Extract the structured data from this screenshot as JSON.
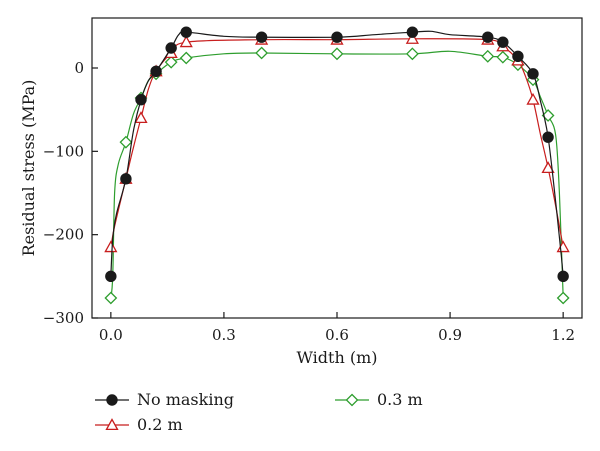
{
  "chart_data": {
    "type": "line",
    "title": "",
    "xlabel": "Width (m)",
    "ylabel": "Residual stress (MPa)",
    "xlim": [
      -0.05,
      1.25
    ],
    "ylim": [
      -300,
      60
    ],
    "x_ticks": [
      0.0,
      0.3,
      0.6,
      0.9,
      1.2
    ],
    "x_tick_labels": [
      "0.0",
      "0.3",
      "0.6",
      "0.9",
      "1.2"
    ],
    "y_ticks": [
      -300,
      -200,
      -100,
      0
    ],
    "y_tick_labels": [
      "−300",
      "−200",
      "−100",
      "0"
    ],
    "grid": false,
    "legend_position": "bottom",
    "series": [
      {
        "name": "No masking",
        "color": "#1a1a1a",
        "marker": "filled-circle",
        "points": [
          [
            0.0,
            -250
          ],
          [
            0.04,
            -133
          ],
          [
            0.08,
            -38
          ],
          [
            0.12,
            -4
          ],
          [
            0.16,
            24
          ],
          [
            0.2,
            43
          ],
          [
            0.4,
            37
          ],
          [
            0.6,
            37
          ],
          [
            0.8,
            43
          ],
          [
            1.0,
            37
          ],
          [
            1.04,
            31
          ],
          [
            1.08,
            14
          ],
          [
            1.12,
            -7
          ],
          [
            1.16,
            -83
          ],
          [
            1.2,
            -250
          ]
        ],
        "curve": [
          [
            0.0,
            -250
          ],
          [
            0.005,
            -205
          ],
          [
            0.015,
            -175
          ],
          [
            0.04,
            -133
          ],
          [
            0.06,
            -75
          ],
          [
            0.08,
            -38
          ],
          [
            0.1,
            -15
          ],
          [
            0.12,
            -4
          ],
          [
            0.16,
            24
          ],
          [
            0.18,
            40
          ],
          [
            0.2,
            43
          ],
          [
            0.3,
            38
          ],
          [
            0.4,
            37
          ],
          [
            0.6,
            37
          ],
          [
            0.7,
            40
          ],
          [
            0.8,
            43
          ],
          [
            0.85,
            44
          ],
          [
            0.9,
            40
          ],
          [
            1.0,
            37
          ],
          [
            1.04,
            31
          ],
          [
            1.08,
            14
          ],
          [
            1.12,
            -7
          ],
          [
            1.14,
            -40
          ],
          [
            1.16,
            -83
          ],
          [
            1.18,
            -160
          ],
          [
            1.195,
            -225
          ],
          [
            1.2,
            -250
          ]
        ]
      },
      {
        "name": "0.2 m",
        "color": "#c81e1e",
        "marker": "open-triangle",
        "points": [
          [
            0.0,
            -215
          ],
          [
            0.04,
            -133
          ],
          [
            0.08,
            -60
          ],
          [
            0.12,
            -4
          ],
          [
            0.16,
            18
          ],
          [
            0.2,
            31
          ],
          [
            0.4,
            34
          ],
          [
            0.6,
            34
          ],
          [
            0.8,
            35
          ],
          [
            1.0,
            34
          ],
          [
            1.04,
            26
          ],
          [
            1.08,
            9
          ],
          [
            1.12,
            -38
          ],
          [
            1.16,
            -120
          ],
          [
            1.2,
            -215
          ]
        ],
        "curve": [
          [
            0.0,
            -215
          ],
          [
            0.01,
            -190
          ],
          [
            0.04,
            -133
          ],
          [
            0.06,
            -95
          ],
          [
            0.08,
            -60
          ],
          [
            0.1,
            -25
          ],
          [
            0.12,
            -4
          ],
          [
            0.16,
            18
          ],
          [
            0.2,
            31
          ],
          [
            0.4,
            34
          ],
          [
            0.6,
            34
          ],
          [
            0.8,
            35
          ],
          [
            1.0,
            34
          ],
          [
            1.04,
            26
          ],
          [
            1.08,
            9
          ],
          [
            1.1,
            -10
          ],
          [
            1.12,
            -38
          ],
          [
            1.14,
            -80
          ],
          [
            1.16,
            -120
          ],
          [
            1.18,
            -165
          ],
          [
            1.2,
            -215
          ]
        ]
      },
      {
        "name": "0.3 m",
        "color": "#2e9e2e",
        "marker": "open-diamond",
        "points": [
          [
            0.0,
            -276
          ],
          [
            0.04,
            -89
          ],
          [
            0.08,
            -36
          ],
          [
            0.12,
            -7
          ],
          [
            0.16,
            7
          ],
          [
            0.2,
            12
          ],
          [
            0.4,
            18
          ],
          [
            0.6,
            17
          ],
          [
            0.8,
            17
          ],
          [
            1.0,
            14
          ],
          [
            1.04,
            13
          ],
          [
            1.08,
            4
          ],
          [
            1.12,
            -14
          ],
          [
            1.16,
            -57
          ],
          [
            1.2,
            -276
          ]
        ],
        "curve": [
          [
            0.0,
            -276
          ],
          [
            0.005,
            -250
          ],
          [
            0.01,
            -150
          ],
          [
            0.02,
            -115
          ],
          [
            0.04,
            -89
          ],
          [
            0.06,
            -55
          ],
          [
            0.08,
            -36
          ],
          [
            0.1,
            -15
          ],
          [
            0.12,
            -7
          ],
          [
            0.16,
            7
          ],
          [
            0.2,
            12
          ],
          [
            0.3,
            17
          ],
          [
            0.4,
            18
          ],
          [
            0.6,
            17
          ],
          [
            0.8,
            17
          ],
          [
            0.9,
            20
          ],
          [
            1.0,
            14
          ],
          [
            1.04,
            13
          ],
          [
            1.08,
            4
          ],
          [
            1.12,
            -14
          ],
          [
            1.14,
            -35
          ],
          [
            1.16,
            -57
          ],
          [
            1.18,
            -80
          ],
          [
            1.19,
            -150
          ],
          [
            1.2,
            -276
          ]
        ]
      }
    ]
  }
}
